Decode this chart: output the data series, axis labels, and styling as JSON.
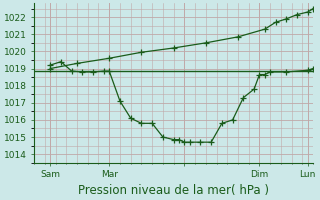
{
  "background_color": "#cce8e8",
  "grid_color": "#b8d8d8",
  "vgrid_color": "#c0a8a8",
  "line_color": "#1a5c1a",
  "title": "Pression niveau de la mer( hPa )",
  "xlim": [
    0,
    26
  ],
  "ylim": [
    1013.5,
    1022.8
  ],
  "yticks": [
    1014,
    1015,
    1016,
    1017,
    1018,
    1019,
    1020,
    1021,
    1022
  ],
  "xtick_positions": [
    1.5,
    7,
    14,
    21,
    25.5
  ],
  "xtick_labels": [
    "Sam",
    "Mar",
    "",
    "Dim",
    "Lun"
  ],
  "vline_positions": [
    1.5,
    7,
    14,
    21,
    25.5
  ],
  "hline_value": 1018.85,
  "wavy_x": [
    1.5,
    2.5,
    3.5,
    4.5,
    5.5,
    6.5,
    7.0,
    8.0,
    9.0,
    10.0,
    11.0,
    12.0,
    13.0,
    13.5,
    14.0,
    14.5,
    15.5,
    16.5,
    17.5,
    18.5,
    19.5,
    20.5,
    21.0,
    21.5,
    22.0,
    23.5,
    25.5,
    26.0
  ],
  "wavy_y": [
    1019.2,
    1019.4,
    1018.85,
    1018.8,
    1018.8,
    1018.85,
    1018.85,
    1017.1,
    1016.1,
    1015.8,
    1015.8,
    1015.0,
    1014.85,
    1014.85,
    1014.7,
    1014.7,
    1014.7,
    1014.7,
    1015.8,
    1016.0,
    1017.3,
    1017.8,
    1018.65,
    1018.65,
    1018.8,
    1018.8,
    1018.9,
    1019.0
  ],
  "trend_x": [
    1.5,
    4.0,
    7.0,
    10.0,
    13.0,
    16.0,
    19.0,
    21.5,
    22.5,
    23.5,
    24.5,
    25.5,
    26.0
  ],
  "trend_y": [
    1019.0,
    1019.3,
    1019.6,
    1019.95,
    1020.2,
    1020.5,
    1020.85,
    1021.3,
    1021.7,
    1021.9,
    1022.15,
    1022.3,
    1022.5
  ],
  "marker": "+",
  "markersize": 4,
  "linewidth": 0.9,
  "title_fontsize": 8.5,
  "tick_fontsize": 6.5
}
